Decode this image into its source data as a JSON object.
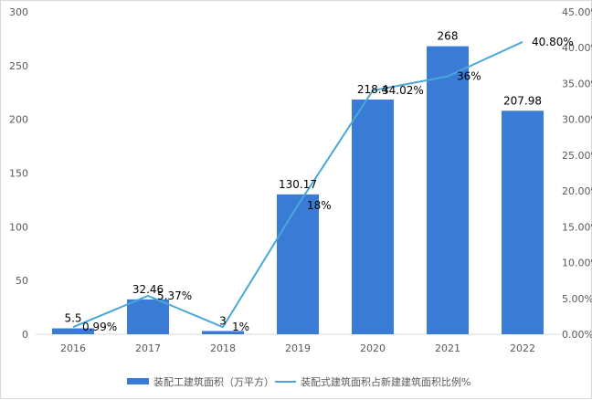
{
  "chart_data": {
    "type": "bar",
    "categories": [
      "2016",
      "2017",
      "2018",
      "2019",
      "2020",
      "2021",
      "2022"
    ],
    "series": [
      {
        "name": "装配工建筑面积（万平方）",
        "type": "bar",
        "axis": "left",
        "values": [
          5.5,
          32.46,
          3,
          130.17,
          218.4,
          268,
          207.98
        ],
        "labels": [
          "5.5",
          "32.46",
          "3",
          "130.17",
          "218.4",
          "268",
          "207.98"
        ],
        "color": "#3a7bd5"
      },
      {
        "name": "装配式建筑面积占新建建筑面积比例%",
        "type": "line",
        "axis": "right",
        "values": [
          0.99,
          5.37,
          1,
          18,
          34.02,
          36,
          40.8
        ],
        "labels": [
          "0.99%",
          "5.37%",
          "1%",
          "18%",
          "34.02%",
          "36%",
          "40.80%"
        ],
        "color": "#4aa8d8"
      }
    ],
    "left_axis": {
      "range": [
        0,
        300
      ],
      "ticks": [
        "0",
        "50",
        "100",
        "150",
        "200",
        "250",
        "300"
      ]
    },
    "right_axis": {
      "range": [
        0,
        45
      ],
      "ticks": [
        "0.00%",
        "5.00%",
        "10.00%",
        "15.00%",
        "20.00%",
        "25.00%",
        "30.00%",
        "35.00%",
        "40.00%",
        "45.00%"
      ]
    },
    "grid": false,
    "legend_position": "bottom"
  }
}
